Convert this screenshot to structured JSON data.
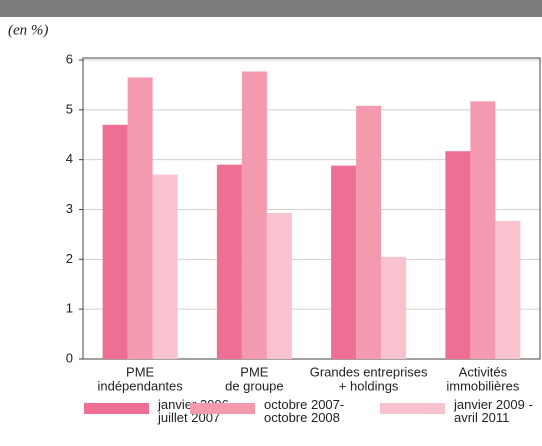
{
  "chart_data": {
    "type": "bar",
    "subtitle": "(en %)",
    "categories": [
      [
        "PME",
        "indépendantes"
      ],
      [
        "PME",
        "de groupe"
      ],
      [
        "Grandes entreprises",
        "+ holdings"
      ],
      [
        "Activités",
        "immobilières"
      ]
    ],
    "series": [
      {
        "name": "janvier 2006 - juillet 2007",
        "color": "#ee6f93",
        "values": [
          4.7,
          3.9,
          3.88,
          4.17
        ]
      },
      {
        "name": "octobre 2007- octobre 2008",
        "color": "#f49aae",
        "values": [
          5.65,
          5.77,
          5.08,
          5.17
        ]
      },
      {
        "name": "janvier 2009 - avril 2011",
        "color": "#f8c3cf",
        "values": [
          3.7,
          2.93,
          2.05,
          2.77
        ]
      }
    ],
    "ylim": [
      0,
      6
    ],
    "yticks": [
      0,
      1,
      2,
      3,
      4,
      5,
      6
    ],
    "grid": true
  }
}
